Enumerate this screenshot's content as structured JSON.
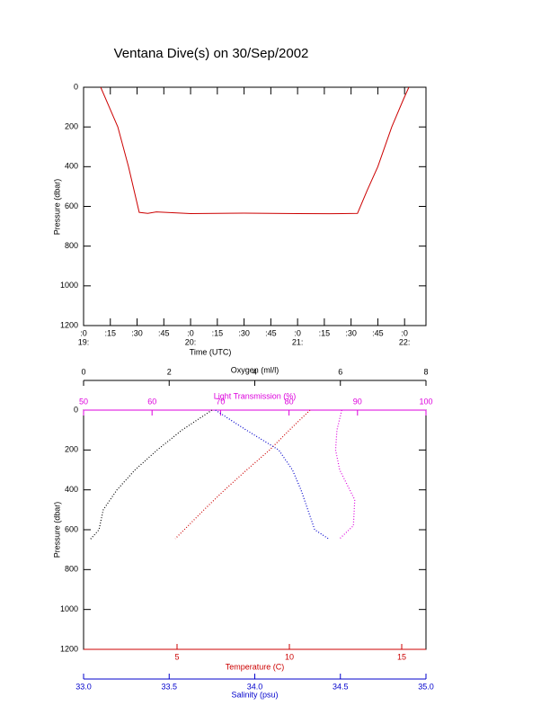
{
  "chart_data": [
    {
      "type": "line",
      "title": "Ventana Dive(s) on 30/Sep/2002",
      "x_label": "Time (UTC)",
      "y_label": "Pressure (dbar)",
      "xlim": [
        19,
        22.2
      ],
      "ylim": [
        0,
        1200
      ],
      "xticks": [
        {
          "value": 19,
          "label": ":0"
        },
        {
          "value": 19.25,
          "label": ":15"
        },
        {
          "value": 19.5,
          "label": ":30"
        },
        {
          "value": 19.75,
          "label": ":45"
        },
        {
          "value": 20,
          "label": ":0"
        },
        {
          "value": 20.25,
          "label": ":15"
        },
        {
          "value": 20.5,
          "label": ":30"
        },
        {
          "value": 20.75,
          "label": ":45"
        },
        {
          "value": 21,
          "label": ":0"
        },
        {
          "value": 21.25,
          "label": ":15"
        },
        {
          "value": 21.5,
          "label": ":30"
        },
        {
          "value": 21.75,
          "label": ":45"
        },
        {
          "value": 22,
          "label": ":0"
        }
      ],
      "xticks_hours": [
        {
          "value": 19,
          "label": "19:"
        },
        {
          "value": 20,
          "label": "20:"
        },
        {
          "value": 21,
          "label": "21:"
        },
        {
          "value": 22,
          "label": "22:"
        }
      ],
      "yticks": [
        0,
        200,
        400,
        600,
        800,
        1000,
        1200
      ],
      "color": "#cc0000",
      "x": [
        19.16,
        19.24,
        19.32,
        19.42,
        19.52,
        19.6,
        19.68,
        20.0,
        20.5,
        21.0,
        21.3,
        21.56,
        21.65,
        21.75,
        21.88,
        21.99,
        22.04
      ],
      "values": [
        0,
        100,
        200,
        400,
        630,
        635,
        628,
        636,
        634,
        636,
        637,
        635,
        520,
        400,
        200,
        60,
        0
      ]
    },
    {
      "type": "profile",
      "y_label": "Pressure (dbar)",
      "ylim": [
        0,
        1200
      ],
      "yticks": [
        0,
        200,
        400,
        600,
        800,
        1000,
        1200
      ],
      "axes": [
        {
          "label": "Oxygen (ml/l)",
          "lim": [
            0,
            8
          ],
          "ticks": [
            0,
            2,
            4,
            6,
            8
          ],
          "color": "#000000"
        },
        {
          "label": "Light Transmission (%)",
          "lim": [
            50,
            100
          ],
          "ticks": [
            50,
            60,
            70,
            80,
            90,
            100
          ],
          "color": "#dd00dd"
        },
        {
          "label": "Temperature (C)",
          "lim": [
            0.84,
            16.08
          ],
          "ticks": [
            5,
            10,
            15
          ],
          "color": "#cc0000"
        },
        {
          "label": "Salinity (psu)",
          "lim": [
            33,
            35
          ],
          "ticks": [
            {
              "value": 33,
              "label": "33.0"
            },
            {
              "value": 33.5,
              "label": "33.5"
            },
            {
              "value": 34,
              "label": "34.0"
            },
            {
              "value": 34.5,
              "label": "34.5"
            },
            {
              "value": 35,
              "label": "35.0"
            }
          ],
          "color": "#0000cc"
        }
      ],
      "series": [
        {
          "axis": 0,
          "color": "#000000",
          "pressure": [
            0,
            100,
            200,
            300,
            400,
            500,
            600,
            650
          ],
          "values": [
            3.0,
            2.3,
            1.72,
            1.2,
            0.78,
            0.46,
            0.36,
            0.15
          ]
        },
        {
          "axis": 1,
          "color": "#dd00dd",
          "pressure": [
            0,
            100,
            200,
            300,
            450,
            580,
            645
          ],
          "values": [
            87.7,
            87.0,
            86.8,
            87.4,
            89.6,
            89.4,
            87.4
          ]
        },
        {
          "axis": 2,
          "color": "#cc0000",
          "pressure": [
            0,
            100,
            200,
            300,
            400,
            500,
            600,
            645
          ],
          "values": [
            10.92,
            10.0,
            9.12,
            8.1,
            7.12,
            6.2,
            5.32,
            4.92
          ]
        },
        {
          "axis": 3,
          "color": "#0000cc",
          "pressure": [
            0,
            100,
            200,
            300,
            400,
            500,
            600,
            645
          ],
          "values": [
            33.77,
            33.95,
            34.14,
            34.22,
            34.27,
            34.31,
            34.35,
            34.43
          ]
        }
      ]
    }
  ]
}
